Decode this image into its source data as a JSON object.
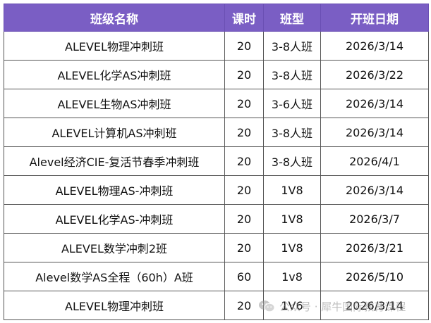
{
  "table": {
    "headers": [
      "班级名称",
      "课时",
      "班型",
      "开班日期"
    ],
    "rows": [
      {
        "name": "ALEVEL物理冲刺班",
        "hours": "20",
        "type": "3-8人班",
        "date": "2026/3/14"
      },
      {
        "name": "ALEVEL化学AS冲刺班",
        "hours": "20",
        "type": "3-8人班",
        "date": "2026/3/22"
      },
      {
        "name": "ALEVEL生物AS冲刺班",
        "hours": "20",
        "type": "3-6人班",
        "date": "2026/3/14"
      },
      {
        "name": "ALEVEL计算机AS冲刺班",
        "hours": "20",
        "type": "3-8人班",
        "date": "2026/3/14"
      },
      {
        "name": "Alevel经济CIE-复活节春季冲刺班",
        "hours": "20",
        "type": "3-8人班",
        "date": "2026/4/1"
      },
      {
        "name": "ALEVEL物理AS-冲刺班",
        "hours": "20",
        "type": "1V8",
        "date": "2026/3/14"
      },
      {
        "name": "ALEVEL化学AS-冲刺班",
        "hours": "20",
        "type": "1V8",
        "date": "2026/3/7"
      },
      {
        "name": "ALEVEL数学冲刺2班",
        "hours": "20",
        "type": "1V8",
        "date": "2026/3/21"
      },
      {
        "name": "Alevel数学AS全程（60h）A班",
        "hours": "60",
        "type": "1v8",
        "date": "2026/5/10"
      },
      {
        "name": "ALEVEL物理冲刺班",
        "hours": "20",
        "type": "1V6",
        "date": "2026/3/14"
      }
    ]
  },
  "watermark": {
    "text": "公众号 · 犀牛国际教育课程",
    "icon": "wechat-icon"
  },
  "colors": {
    "header_bg": "#7a5ec4",
    "header_text": "#ffffff",
    "border": "#555555",
    "watermark": "#8a8a8a"
  }
}
